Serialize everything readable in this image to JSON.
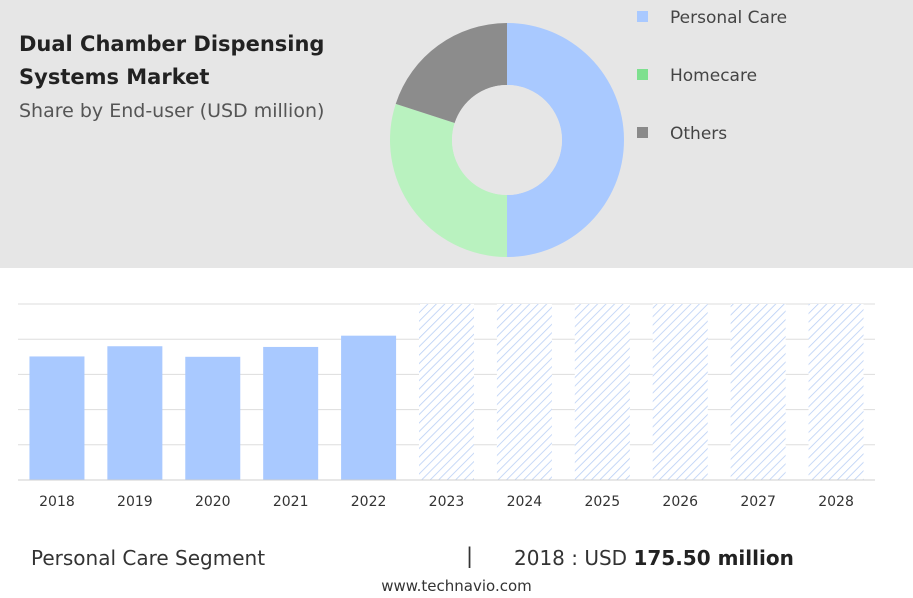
{
  "title": "Dual Chamber Dispensing Systems Market",
  "subtitle": "Share by End-user (USD million)",
  "legend": [
    {
      "label": "Personal Care",
      "color": "#a9c9ff"
    },
    {
      "label": "Homecare",
      "color": "#7ee08f"
    },
    {
      "label": "Others",
      "color": "#8a8a8a"
    }
  ],
  "chart_data": [
    {
      "type": "pie",
      "subtype": "donut",
      "categories": [
        "Personal Care",
        "Homecare",
        "Others"
      ],
      "values": [
        50,
        30,
        20
      ],
      "colors": [
        "#a9c9ff",
        "#b9f2bf",
        "#8c8c8c"
      ]
    },
    {
      "type": "bar",
      "categories": [
        "2018",
        "2019",
        "2020",
        "2021",
        "2022",
        "2023",
        "2024",
        "2025",
        "2026",
        "2027",
        "2028"
      ],
      "values": [
        175.5,
        190,
        175,
        189,
        205,
        null,
        null,
        null,
        null,
        null,
        null
      ],
      "forecast_categories": [
        "2023",
        "2024",
        "2025",
        "2026",
        "2027",
        "2028"
      ],
      "ylim": [
        0,
        250
      ],
      "grid": true,
      "bar_color": "#a9c9ff"
    }
  ],
  "footer": {
    "segment_label": "Personal Care Segment",
    "separator": "|",
    "value_prefix": "2018 : USD ",
    "value_bold": "175.50 million"
  },
  "watermark": "www.technavio.com"
}
